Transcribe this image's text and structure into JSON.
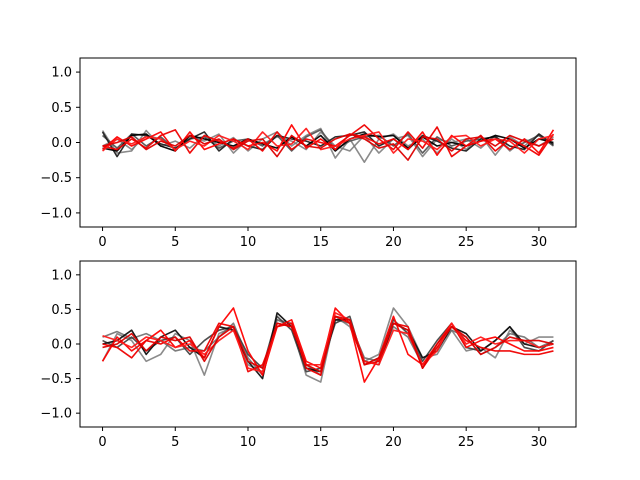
{
  "chart_data": [
    {
      "type": "line",
      "xlim": [
        -1.55,
        32.55
      ],
      "ylim": [
        -1.2,
        1.2
      ],
      "xticks": [
        0,
        5,
        10,
        15,
        20,
        25,
        30
      ],
      "xtick_labels": [
        "0",
        "5",
        "10",
        "15",
        "20",
        "25",
        "30"
      ],
      "yticks": [
        -1.0,
        -0.5,
        0.0,
        0.5,
        1.0
      ],
      "ytick_labels": [
        "−1.0",
        "−0.5",
        "0.0",
        "0.5",
        "1.0"
      ],
      "grid": false,
      "x": [
        0,
        1,
        2,
        3,
        4,
        5,
        6,
        7,
        8,
        9,
        10,
        11,
        12,
        13,
        14,
        15,
        16,
        17,
        18,
        19,
        20,
        21,
        22,
        23,
        24,
        25,
        26,
        27,
        28,
        29,
        30,
        31
      ],
      "series": [
        {
          "color": "#777777",
          "values": [
            0.17,
            -0.15,
            -0.12,
            0.17,
            -0.05,
            0.02,
            -0.08,
            0.1,
            -0.05,
            0.07,
            -0.12,
            0.05,
            0.15,
            -0.05,
            0.1,
            0.2,
            -0.22,
            0.05,
            -0.28,
            0.05,
            0.12,
            -0.05,
            0.05,
            -0.15,
            0.05,
            -0.1,
            0.1,
            -0.18,
            0.08,
            -0.05,
            0.12,
            -0.02
          ]
        },
        {
          "color": "#777777",
          "values": [
            -0.05,
            0.05,
            -0.1,
            0.1,
            0.05,
            -0.1,
            0.08,
            0.02,
            0.12,
            -0.15,
            0.05,
            -0.02,
            0.08,
            0.02,
            -0.1,
            0.15,
            -0.05,
            -0.12,
            0.1,
            -0.15,
            0.05,
            0.1,
            -0.2,
            0.05,
            0.0,
            0.05,
            -0.08,
            0.1,
            -0.12,
            0.05,
            -0.05,
            0.08
          ]
        },
        {
          "color": "#555555",
          "values": [
            0.1,
            -0.08,
            0.12,
            -0.05,
            0.08,
            -0.1,
            0.05,
            0.08,
            -0.08,
            0.02,
            0.05,
            -0.05,
            0.1,
            -0.12,
            0.08,
            0.18,
            -0.1,
            0.02,
            0.08,
            0.1,
            -0.05,
            0.12,
            -0.15,
            0.08,
            -0.05,
            0.02,
            0.05,
            0.08,
            -0.1,
            0.0,
            0.1,
            -0.05
          ]
        },
        {
          "color": "#222222",
          "values": [
            0.15,
            -0.2,
            0.12,
            0.1,
            -0.02,
            -0.08,
            0.05,
            0.15,
            -0.12,
            0.05,
            -0.05,
            -0.1,
            0.1,
            0.05,
            0.02,
            -0.05,
            0.08,
            0.1,
            0.15,
            -0.05,
            0.05,
            -0.1,
            0.1,
            0.02,
            -0.08,
            -0.12,
            0.05,
            0.08,
            -0.05,
            -0.1,
            0.12,
            -0.03
          ]
        },
        {
          "color": "#000000",
          "values": [
            -0.08,
            -0.12,
            0.1,
            0.12,
            -0.05,
            -0.12,
            0.1,
            0.05,
            0.0,
            -0.05,
            0.05,
            -0.02,
            -0.08,
            0.08,
            -0.05,
            0.1,
            -0.12,
            0.05,
            0.12,
            0.08,
            0.1,
            -0.08,
            0.08,
            -0.05,
            0.0,
            -0.05,
            0.02,
            0.1,
            0.05,
            -0.08,
            0.05,
            0.0
          ]
        },
        {
          "color": "#ff0000",
          "values": [
            -0.1,
            0.08,
            -0.05,
            0.05,
            0.15,
            -0.12,
            0.15,
            -0.1,
            -0.02,
            0.05,
            -0.05,
            0.0,
            -0.12,
            0.25,
            -0.08,
            0.05,
            -0.1,
            0.12,
            0.08,
            -0.02,
            0.05,
            -0.1,
            0.15,
            -0.18,
            0.1,
            -0.05,
            0.02,
            0.05,
            -0.1,
            0.05,
            -0.15,
            0.18
          ]
        },
        {
          "color": "#ee0000",
          "values": [
            -0.05,
            -0.1,
            0.05,
            -0.08,
            0.1,
            0.18,
            -0.15,
            0.1,
            0.02,
            -0.08,
            0.05,
            -0.12,
            0.15,
            -0.1,
            0.05,
            0.0,
            -0.05,
            0.1,
            0.25,
            0.05,
            -0.1,
            0.15,
            -0.08,
            0.22,
            -0.2,
            -0.05,
            0.1,
            -0.12,
            0.05,
            -0.05,
            -0.18,
            0.12
          ]
        },
        {
          "color": "#ff1a1a",
          "values": [
            -0.12,
            0.05,
            -0.02,
            0.08,
            0.05,
            -0.1,
            0.02,
            -0.05,
            0.1,
            0.02,
            -0.1,
            0.15,
            -0.05,
            -0.02,
            0.2,
            -0.1,
            -0.05,
            0.05,
            0.1,
            0.15,
            -0.15,
            0.05,
            0.02,
            -0.1,
            0.08,
            0.1,
            -0.05,
            0.05,
            0.02,
            -0.15,
            0.05,
            0.1
          ]
        },
        {
          "color": "#dd0000",
          "values": [
            -0.05,
            0.0,
            0.08,
            -0.1,
            0.02,
            -0.05,
            0.1,
            -0.02,
            0.05,
            -0.1,
            0.02,
            0.05,
            -0.2,
            0.1,
            -0.05,
            -0.08,
            0.05,
            0.12,
            0.05,
            -0.08,
            -0.02,
            -0.25,
            0.08,
            0.05,
            -0.12,
            0.05,
            0.08,
            -0.05,
            0.1,
            0.02,
            -0.05,
            0.05
          ]
        }
      ]
    },
    {
      "type": "line",
      "xlim": [
        -1.55,
        32.55
      ],
      "ylim": [
        -1.2,
        1.2
      ],
      "xticks": [
        0,
        5,
        10,
        15,
        20,
        25,
        30
      ],
      "xtick_labels": [
        "0",
        "5",
        "10",
        "15",
        "20",
        "25",
        "30"
      ],
      "yticks": [
        -1.0,
        -0.5,
        0.0,
        0.5,
        1.0
      ],
      "ytick_labels": [
        "−1.0",
        "−0.5",
        "0.0",
        "0.5",
        "1.0"
      ],
      "grid": false,
      "x": [
        0,
        1,
        2,
        3,
        4,
        5,
        6,
        7,
        8,
        9,
        10,
        11,
        12,
        13,
        14,
        15,
        16,
        17,
        18,
        19,
        20,
        21,
        22,
        23,
        24,
        25,
        26,
        27,
        28,
        29,
        30,
        31
      ],
      "series": [
        {
          "color": "#777777",
          "values": [
            -0.25,
            0.15,
            0.05,
            -0.25,
            -0.15,
            0.15,
            0.05,
            -0.45,
            0.15,
            0.25,
            -0.3,
            -0.4,
            0.35,
            0.25,
            -0.45,
            -0.55,
            0.4,
            0.25,
            -0.25,
            -0.15,
            0.52,
            0.25,
            -0.2,
            -0.15,
            0.2,
            -0.1,
            -0.05,
            -0.2,
            0.2,
            0.0,
            0.1,
            0.1
          ]
        },
        {
          "color": "#666666",
          "values": [
            0.1,
            0.18,
            0.08,
            0.15,
            0.05,
            -0.1,
            -0.05,
            -0.1,
            0.1,
            0.3,
            -0.2,
            -0.45,
            0.35,
            0.3,
            -0.3,
            -0.45,
            0.35,
            0.3,
            -0.2,
            -0.25,
            0.25,
            0.1,
            -0.3,
            -0.05,
            0.2,
            0.1,
            -0.15,
            -0.05,
            0.15,
            0.1,
            -0.05,
            0.05
          ]
        },
        {
          "color": "#444444",
          "values": [
            0.05,
            -0.05,
            0.1,
            -0.1,
            0.05,
            0.1,
            -0.15,
            0.05,
            0.2,
            0.25,
            -0.15,
            -0.35,
            0.4,
            0.2,
            -0.4,
            -0.35,
            0.3,
            0.4,
            -0.3,
            -0.2,
            0.35,
            0.15,
            -0.25,
            0.05,
            0.3,
            -0.05,
            -0.1,
            0.05,
            0.25,
            -0.05,
            -0.1,
            0.05
          ]
        },
        {
          "color": "#111111",
          "values": [
            0.0,
            0.05,
            0.2,
            -0.15,
            0.1,
            0.2,
            -0.05,
            -0.2,
            0.25,
            0.2,
            -0.25,
            -0.5,
            0.45,
            0.25,
            -0.35,
            -0.4,
            0.35,
            0.35,
            -0.25,
            -0.3,
            0.3,
            0.2,
            -0.2,
            -0.1,
            0.25,
            0.15,
            -0.1,
            0.05,
            0.25,
            0.0,
            -0.05,
            0.0
          ]
        },
        {
          "color": "#ff0000",
          "values": [
            -0.25,
            0.1,
            -0.1,
            0.05,
            0.2,
            -0.05,
            0.05,
            -0.2,
            0.25,
            0.52,
            -0.1,
            -0.45,
            0.25,
            0.35,
            -0.25,
            -0.35,
            0.52,
            0.3,
            -0.55,
            -0.2,
            0.4,
            -0.15,
            -0.3,
            0.0,
            0.3,
            -0.05,
            0.05,
            0.1,
            0.0,
            -0.1,
            -0.1,
            -0.05
          ]
        },
        {
          "color": "#ee0000",
          "values": [
            0.0,
            -0.05,
            -0.2,
            0.05,
            0.0,
            0.1,
            -0.1,
            -0.1,
            0.3,
            0.25,
            -0.4,
            -0.3,
            0.25,
            0.3,
            -0.35,
            -0.45,
            0.4,
            0.3,
            -0.3,
            -0.25,
            0.3,
            0.25,
            -0.35,
            -0.05,
            0.25,
            0.05,
            -0.05,
            -0.1,
            -0.1,
            -0.15,
            -0.15,
            -0.1
          ]
        },
        {
          "color": "#ff1a1a",
          "values": [
            0.12,
            0.05,
            -0.05,
            0.1,
            0.05,
            -0.05,
            0.0,
            -0.15,
            0.05,
            0.2,
            -0.35,
            -0.4,
            0.3,
            0.25,
            -0.3,
            -0.3,
            0.45,
            0.35,
            -0.25,
            -0.3,
            0.2,
            0.15,
            -0.3,
            -0.1,
            0.3,
            0.0,
            0.1,
            0.0,
            0.05,
            0.05,
            -0.05,
            0.0
          ]
        },
        {
          "color": "#dd0000",
          "values": [
            -0.05,
            0.0,
            0.15,
            -0.1,
            0.1,
            0.05,
            0.1,
            -0.25,
            0.1,
            0.25,
            -0.25,
            -0.35,
            0.3,
            0.25,
            -0.3,
            -0.4,
            0.4,
            0.35,
            -0.3,
            -0.2,
            0.3,
            0.2,
            -0.35,
            0.0,
            0.25,
            0.1,
            -0.15,
            -0.05,
            0.1,
            0.05,
            0.05,
            0.0
          ]
        }
      ]
    }
  ]
}
